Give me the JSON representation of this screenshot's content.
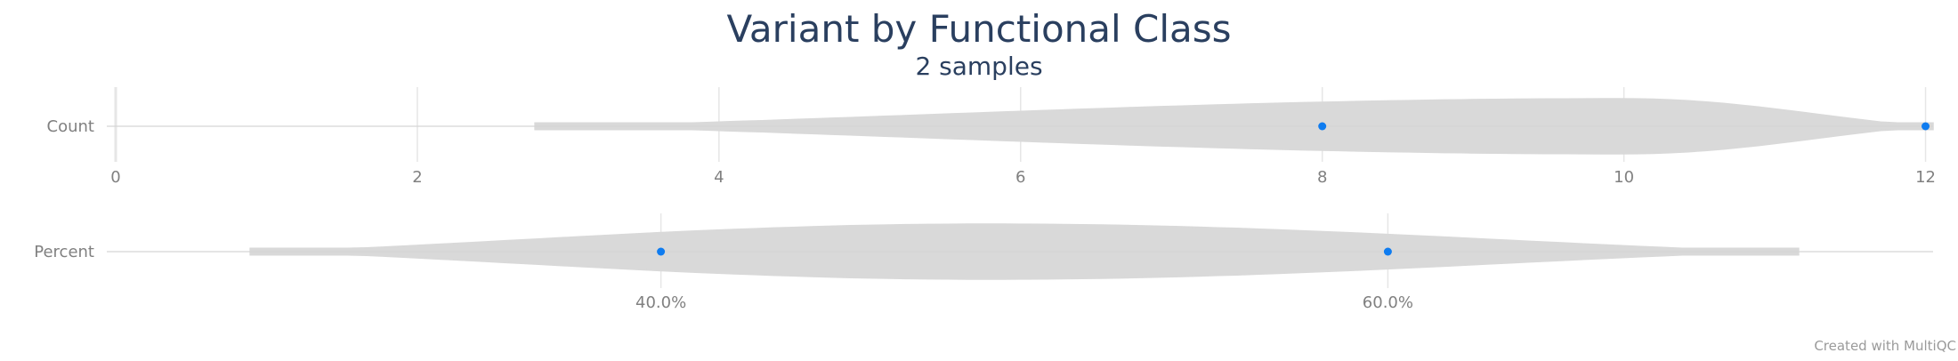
{
  "chart_data": {
    "type": "violin",
    "title": "Variant by Functional Class",
    "subtitle": "2 samples",
    "colors": {
      "violin": "#d9d9d9",
      "point": "#0f7cf0",
      "grid": "#e6e6e6",
      "title": "#2a3f5f",
      "tick": "#808080"
    },
    "panels": [
      {
        "label": "Count",
        "xlim": [
          0,
          12.05
        ],
        "ticks": [
          0,
          2,
          4,
          6,
          8,
          10,
          12
        ],
        "tick_labels": [
          "0",
          "2",
          "4",
          "6",
          "8",
          "10",
          "12"
        ],
        "values": [
          8,
          12
        ],
        "violin_range": [
          2.78,
          12.05
        ],
        "violin_peak": 10.0
      },
      {
        "label": "Percent",
        "xlim": [
          25,
          75
        ],
        "ticks": [
          40,
          60
        ],
        "tick_labels": [
          "40.0%",
          "60.0%"
        ],
        "values": [
          40,
          60
        ],
        "violin_range": [
          28.7,
          71.3
        ],
        "violin_peak": 49.0
      }
    ]
  },
  "credit": "Created with MultiQC"
}
